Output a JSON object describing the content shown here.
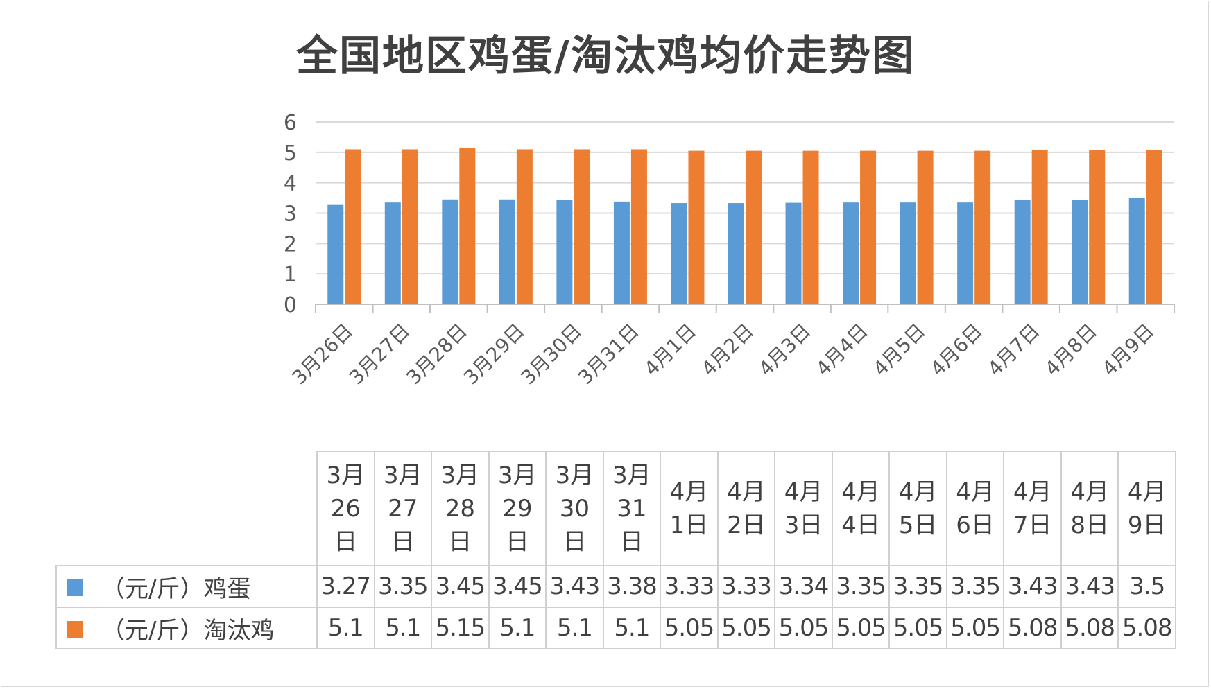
{
  "chart_data": {
    "type": "bar",
    "title": "全国地区鸡蛋/淘汰鸡均价走势图",
    "categories": [
      "3月26日",
      "3月27日",
      "3月28日",
      "3月29日",
      "3月30日",
      "3月31日",
      "4月1日",
      "4月2日",
      "4月3日",
      "4月4日",
      "4月5日",
      "4月6日",
      "4月7日",
      "4月8日",
      "4月9日"
    ],
    "table_dates": [
      [
        "3月",
        "26",
        "日"
      ],
      [
        "3月",
        "27",
        "日"
      ],
      [
        "3月",
        "28",
        "日"
      ],
      [
        "3月",
        "29",
        "日"
      ],
      [
        "3月",
        "30",
        "日"
      ],
      [
        "3月",
        "31",
        "日"
      ],
      [
        "4月",
        "1日"
      ],
      [
        "4月",
        "2日"
      ],
      [
        "4月",
        "3日"
      ],
      [
        "4月",
        "4日"
      ],
      [
        "4月",
        "5日"
      ],
      [
        "4月",
        "6日"
      ],
      [
        "4月",
        "7日"
      ],
      [
        "4月",
        "8日"
      ],
      [
        "4月",
        "9日"
      ]
    ],
    "series": [
      {
        "name": "（元/斤）鸡蛋",
        "color": "#5b9bd5",
        "values": [
          3.27,
          3.35,
          3.45,
          3.45,
          3.43,
          3.38,
          3.33,
          3.33,
          3.34,
          3.35,
          3.35,
          3.35,
          3.43,
          3.43,
          3.5
        ],
        "labels": [
          "3.27",
          "3.35",
          "3.45",
          "3.45",
          "3.43",
          "3.38",
          "3.33",
          "3.33",
          "3.34",
          "3.35",
          "3.35",
          "3.35",
          "3.43",
          "3.43",
          "3.5"
        ]
      },
      {
        "name": "（元/斤）淘汰鸡",
        "color": "#ed7d31",
        "values": [
          5.1,
          5.1,
          5.15,
          5.1,
          5.1,
          5.1,
          5.05,
          5.05,
          5.05,
          5.05,
          5.05,
          5.05,
          5.08,
          5.08,
          5.08
        ],
        "labels": [
          "5.1",
          "5.1",
          "5.15",
          "5.1",
          "5.1",
          "5.1",
          "5.05",
          "5.05",
          "5.05",
          "5.05",
          "5.05",
          "5.05",
          "5.08",
          "5.08",
          "5.08"
        ]
      }
    ],
    "ylim": [
      0,
      6
    ],
    "yticks": [
      "0",
      "1",
      "2",
      "3",
      "4",
      "5",
      "6"
    ],
    "grid": true,
    "legend": "data-table"
  }
}
